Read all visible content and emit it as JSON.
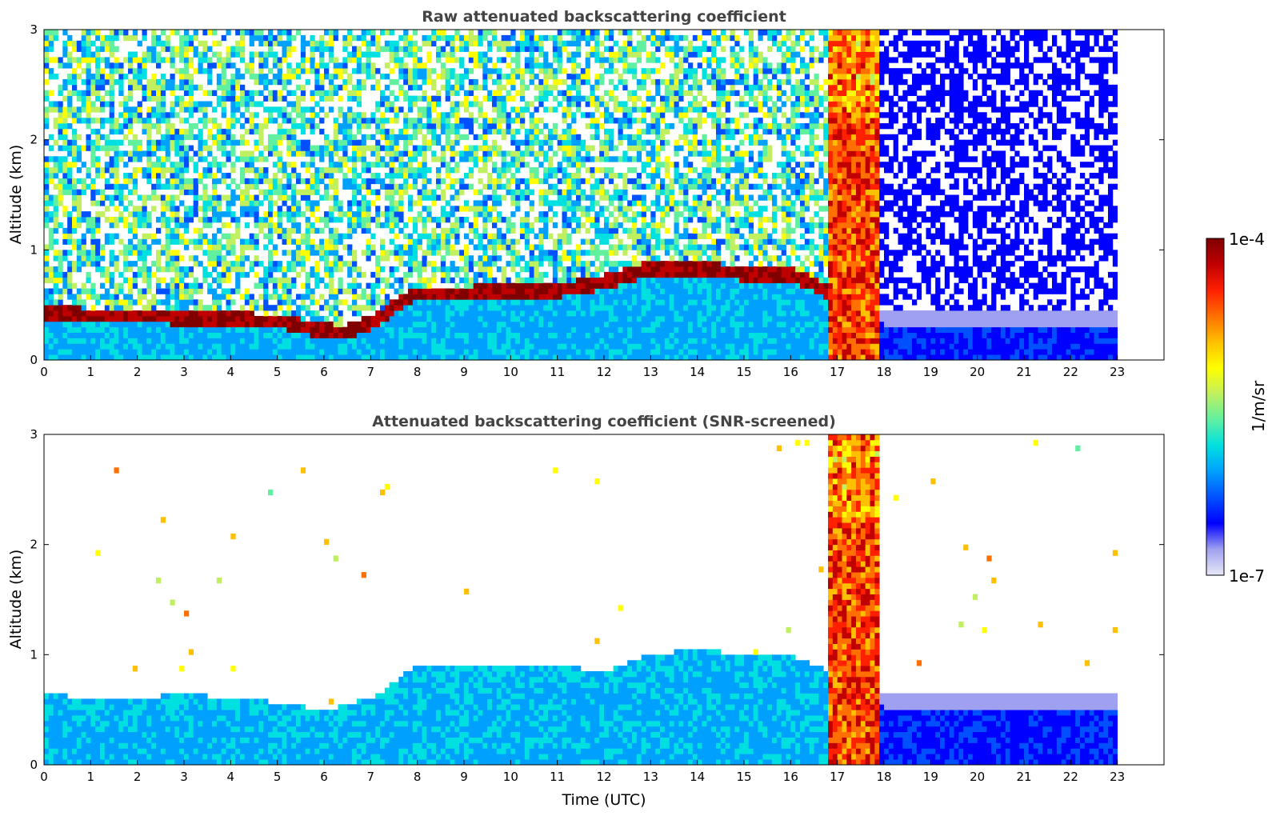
{
  "chart_data": [
    {
      "type": "heatmap",
      "title": "Raw attenuated backscattering coefficient",
      "xlabel": "",
      "ylabel": "Altitude (km)",
      "xlim": [
        0,
        24
      ],
      "ylim": [
        0,
        3
      ],
      "xticks": [
        "0",
        "1",
        "2",
        "3",
        "4",
        "5",
        "6",
        "7",
        "8",
        "9",
        "10",
        "11",
        "12",
        "13",
        "14",
        "15",
        "16",
        "17",
        "18",
        "19",
        "20",
        "21",
        "22",
        "23"
      ],
      "yticks": [
        "0",
        "1",
        "2",
        "3"
      ],
      "data_end_hour": 23,
      "boundary_layer_top_km": [
        [
          0,
          0.45
        ],
        [
          1,
          0.42
        ],
        [
          2,
          0.42
        ],
        [
          3,
          0.4
        ],
        [
          4,
          0.38
        ],
        [
          5,
          0.37
        ],
        [
          6,
          0.28
        ],
        [
          6.5,
          0.27
        ],
        [
          7,
          0.35
        ],
        [
          7.5,
          0.5
        ],
        [
          8,
          0.62
        ],
        [
          9,
          0.62
        ],
        [
          10,
          0.65
        ],
        [
          11,
          0.65
        ],
        [
          12,
          0.72
        ],
        [
          13,
          0.85
        ],
        [
          14,
          0.85
        ],
        [
          15,
          0.8
        ],
        [
          16,
          0.8
        ],
        [
          18,
          0.4
        ],
        [
          19,
          0.4
        ],
        [
          20,
          0.4
        ],
        [
          21,
          0.4
        ],
        [
          22,
          0.4
        ],
        [
          23,
          0.4
        ]
      ],
      "thick_cloud_hours": [
        16.85,
        17.85
      ],
      "grid": false
    },
    {
      "type": "heatmap",
      "title": "Attenuated backscattering coefficient (SNR-screened)",
      "xlabel": "Time (UTC)",
      "ylabel": "Altitude (km)",
      "xlim": [
        0,
        24
      ],
      "ylim": [
        0,
        3
      ],
      "xticks": [
        "0",
        "1",
        "2",
        "3",
        "4",
        "5",
        "6",
        "7",
        "8",
        "9",
        "10",
        "11",
        "12",
        "13",
        "14",
        "15",
        "16",
        "17",
        "18",
        "19",
        "20",
        "21",
        "22",
        "23"
      ],
      "yticks": [
        "0",
        "1",
        "2",
        "3"
      ],
      "data_end_hour": 23,
      "valid_signal_top_km": [
        [
          0,
          0.6
        ],
        [
          1,
          0.55
        ],
        [
          2,
          0.55
        ],
        [
          3,
          0.6
        ],
        [
          4,
          0.55
        ],
        [
          5,
          0.52
        ],
        [
          6,
          0.45
        ],
        [
          7,
          0.55
        ],
        [
          8,
          0.85
        ],
        [
          9,
          0.85
        ],
        [
          10,
          0.85
        ],
        [
          11,
          0.85
        ],
        [
          12,
          0.8
        ],
        [
          13,
          0.95
        ],
        [
          14,
          1.0
        ],
        [
          15,
          0.95
        ],
        [
          16,
          0.95
        ],
        [
          18,
          0.6
        ],
        [
          19,
          0.6
        ],
        [
          20,
          0.6
        ],
        [
          21,
          0.6
        ],
        [
          22,
          0.6
        ],
        [
          23,
          0.6
        ]
      ],
      "thick_cloud_hours": [
        16.85,
        17.85
      ],
      "grid": false
    }
  ],
  "colorbar": {
    "label": "1/m/sr",
    "max_label": "1e-4",
    "min_label": "1e-7",
    "scale": "log",
    "colors": [
      "#e8e8f8",
      "#a0a0f0",
      "#0000ff",
      "#0050ff",
      "#00a0ff",
      "#00e0e0",
      "#60f0a0",
      "#c0f060",
      "#ffff00",
      "#ffc000",
      "#ff7000",
      "#ff2000",
      "#c00000",
      "#800000"
    ]
  }
}
